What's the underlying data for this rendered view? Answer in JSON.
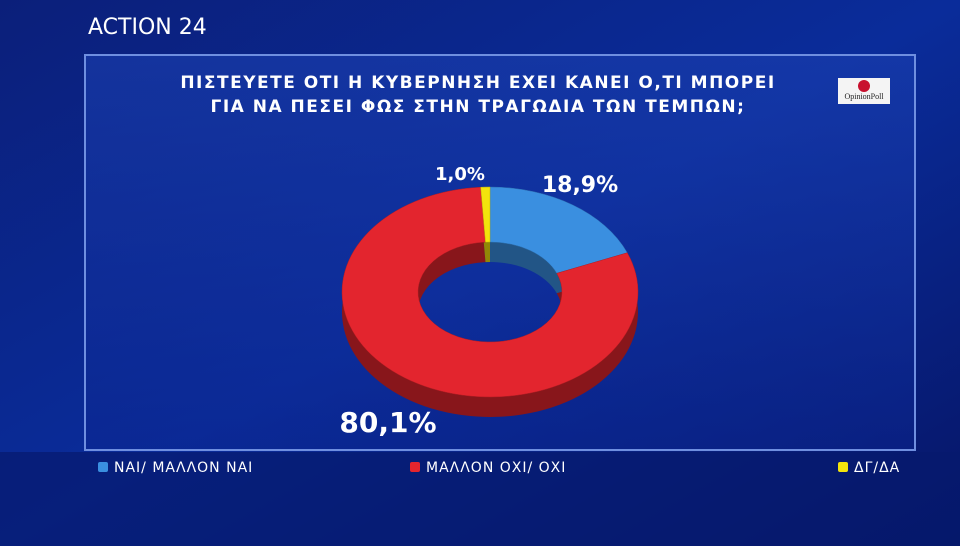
{
  "channel_logo": "ACTION 24",
  "source_logo": "OpinionPoll",
  "chart_data": {
    "type": "donut",
    "title": [
      "ΠΙΣΤΕΥΕΤΕ ΟΤΙ Η ΚΥΒΕΡΝΗΣΗ ΕΧΕΙ ΚΑΝΕΙ Ο,ΤΙ ΜΠΟΡΕΙ",
      "ΓΙΑ ΝΑ ΠΕΣΕΙ ΦΩΣ ΣΤΗΝ ΤΡΑΓΩΔΙΑ ΤΩΝ ΤΕΜΠΩΝ;"
    ],
    "categories": [
      "ΝΑΙ/ ΜΑΛΛΟΝ ΝΑΙ",
      "ΜΑΛΛΟΝ ΟΧΙ/ ΟΧΙ",
      "ΔΓ/ΔΑ"
    ],
    "values": [
      18.9,
      80.1,
      1.0
    ],
    "value_labels": [
      "18,9%",
      "80,1%",
      "1,0%"
    ],
    "colors": [
      "#3a8fe0",
      "#e3252e",
      "#f3e40c"
    ]
  }
}
